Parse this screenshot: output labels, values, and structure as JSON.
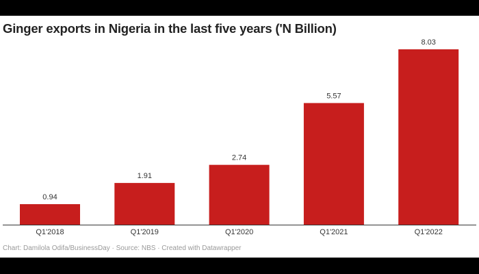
{
  "chart_data": {
    "type": "bar",
    "title": "Ginger exports in Nigeria in the last five years ('N Billion)",
    "categories": [
      "Q1'2018",
      "Q1'2019",
      "Q1'2020",
      "Q1'2021",
      "Q1'2022"
    ],
    "values": [
      0.94,
      1.91,
      2.74,
      5.57,
      8.03
    ],
    "value_labels": [
      "0.94",
      "1.91",
      "2.74",
      "5.57",
      "8.03"
    ],
    "xlabel": "",
    "ylabel": "",
    "ylim": [
      0,
      8.03
    ],
    "grid": false,
    "bar_color": "#c71e1d",
    "footer": "Chart: Damilola Odifa/BusinessDay · Source: NBS · Created with Datawrapper"
  }
}
